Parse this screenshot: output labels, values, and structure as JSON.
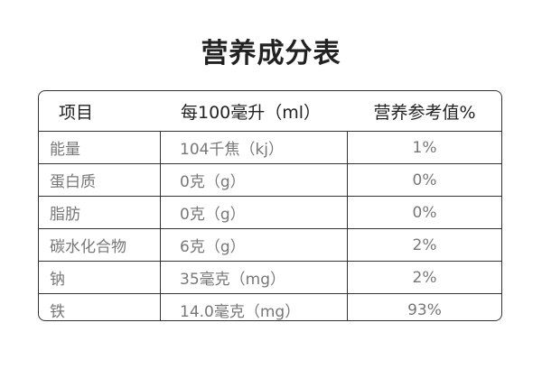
{
  "title": "营养成分表",
  "table": {
    "headers": [
      "项目",
      "每100毫升（ml）",
      "营养参考值%"
    ],
    "rows": [
      [
        "能量",
        "104千焦（kj）",
        "1%"
      ],
      [
        "蛋白质",
        "0克（g）",
        "0%"
      ],
      [
        "脂肪",
        "0克（g）",
        "0%"
      ],
      [
        "碳水化合物",
        "6克（g）",
        "2%"
      ],
      [
        "钠",
        "35毫克（mg）",
        "2%"
      ],
      [
        "铁",
        "14.0毫克（mg）",
        "93%"
      ]
    ]
  }
}
